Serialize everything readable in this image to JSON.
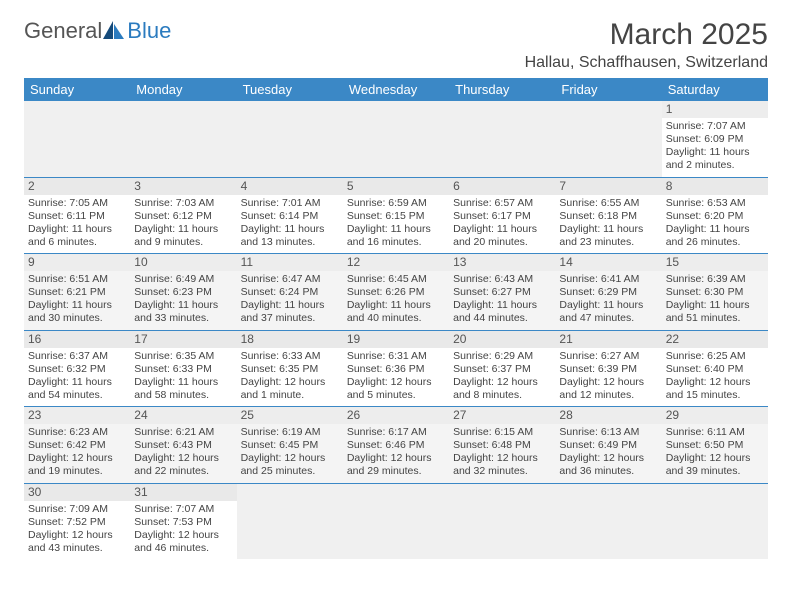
{
  "logo": {
    "text1": "General",
    "text2": "Blue"
  },
  "title": "March 2025",
  "location": "Hallau, Schaffhausen, Switzerland",
  "colors": {
    "header_bg": "#3b88c6",
    "header_text": "#ffffff",
    "rule": "#3b88c6",
    "alt_row": "#f4f4f4",
    "daynum_bg": "#e9e9e9"
  },
  "weekdays": [
    "Sunday",
    "Monday",
    "Tuesday",
    "Wednesday",
    "Thursday",
    "Friday",
    "Saturday"
  ],
  "weeks": [
    [
      null,
      null,
      null,
      null,
      null,
      null,
      {
        "n": "1",
        "sr": "7:07 AM",
        "ss": "6:09 PM",
        "dl": "11 hours and 2 minutes."
      }
    ],
    [
      {
        "n": "2",
        "sr": "7:05 AM",
        "ss": "6:11 PM",
        "dl": "11 hours and 6 minutes."
      },
      {
        "n": "3",
        "sr": "7:03 AM",
        "ss": "6:12 PM",
        "dl": "11 hours and 9 minutes."
      },
      {
        "n": "4",
        "sr": "7:01 AM",
        "ss": "6:14 PM",
        "dl": "11 hours and 13 minutes."
      },
      {
        "n": "5",
        "sr": "6:59 AM",
        "ss": "6:15 PM",
        "dl": "11 hours and 16 minutes."
      },
      {
        "n": "6",
        "sr": "6:57 AM",
        "ss": "6:17 PM",
        "dl": "11 hours and 20 minutes."
      },
      {
        "n": "7",
        "sr": "6:55 AM",
        "ss": "6:18 PM",
        "dl": "11 hours and 23 minutes."
      },
      {
        "n": "8",
        "sr": "6:53 AM",
        "ss": "6:20 PM",
        "dl": "11 hours and 26 minutes."
      }
    ],
    [
      {
        "n": "9",
        "sr": "6:51 AM",
        "ss": "6:21 PM",
        "dl": "11 hours and 30 minutes."
      },
      {
        "n": "10",
        "sr": "6:49 AM",
        "ss": "6:23 PM",
        "dl": "11 hours and 33 minutes."
      },
      {
        "n": "11",
        "sr": "6:47 AM",
        "ss": "6:24 PM",
        "dl": "11 hours and 37 minutes."
      },
      {
        "n": "12",
        "sr": "6:45 AM",
        "ss": "6:26 PM",
        "dl": "11 hours and 40 minutes."
      },
      {
        "n": "13",
        "sr": "6:43 AM",
        "ss": "6:27 PM",
        "dl": "11 hours and 44 minutes."
      },
      {
        "n": "14",
        "sr": "6:41 AM",
        "ss": "6:29 PM",
        "dl": "11 hours and 47 minutes."
      },
      {
        "n": "15",
        "sr": "6:39 AM",
        "ss": "6:30 PM",
        "dl": "11 hours and 51 minutes."
      }
    ],
    [
      {
        "n": "16",
        "sr": "6:37 AM",
        "ss": "6:32 PM",
        "dl": "11 hours and 54 minutes."
      },
      {
        "n": "17",
        "sr": "6:35 AM",
        "ss": "6:33 PM",
        "dl": "11 hours and 58 minutes."
      },
      {
        "n": "18",
        "sr": "6:33 AM",
        "ss": "6:35 PM",
        "dl": "12 hours and 1 minute."
      },
      {
        "n": "19",
        "sr": "6:31 AM",
        "ss": "6:36 PM",
        "dl": "12 hours and 5 minutes."
      },
      {
        "n": "20",
        "sr": "6:29 AM",
        "ss": "6:37 PM",
        "dl": "12 hours and 8 minutes."
      },
      {
        "n": "21",
        "sr": "6:27 AM",
        "ss": "6:39 PM",
        "dl": "12 hours and 12 minutes."
      },
      {
        "n": "22",
        "sr": "6:25 AM",
        "ss": "6:40 PM",
        "dl": "12 hours and 15 minutes."
      }
    ],
    [
      {
        "n": "23",
        "sr": "6:23 AM",
        "ss": "6:42 PM",
        "dl": "12 hours and 19 minutes."
      },
      {
        "n": "24",
        "sr": "6:21 AM",
        "ss": "6:43 PM",
        "dl": "12 hours and 22 minutes."
      },
      {
        "n": "25",
        "sr": "6:19 AM",
        "ss": "6:45 PM",
        "dl": "12 hours and 25 minutes."
      },
      {
        "n": "26",
        "sr": "6:17 AM",
        "ss": "6:46 PM",
        "dl": "12 hours and 29 minutes."
      },
      {
        "n": "27",
        "sr": "6:15 AM",
        "ss": "6:48 PM",
        "dl": "12 hours and 32 minutes."
      },
      {
        "n": "28",
        "sr": "6:13 AM",
        "ss": "6:49 PM",
        "dl": "12 hours and 36 minutes."
      },
      {
        "n": "29",
        "sr": "6:11 AM",
        "ss": "6:50 PM",
        "dl": "12 hours and 39 minutes."
      }
    ],
    [
      {
        "n": "30",
        "sr": "7:09 AM",
        "ss": "7:52 PM",
        "dl": "12 hours and 43 minutes."
      },
      {
        "n": "31",
        "sr": "7:07 AM",
        "ss": "7:53 PM",
        "dl": "12 hours and 46 minutes."
      },
      null,
      null,
      null,
      null,
      null
    ]
  ],
  "labels": {
    "sunrise": "Sunrise:",
    "sunset": "Sunset:",
    "daylight": "Daylight:"
  }
}
